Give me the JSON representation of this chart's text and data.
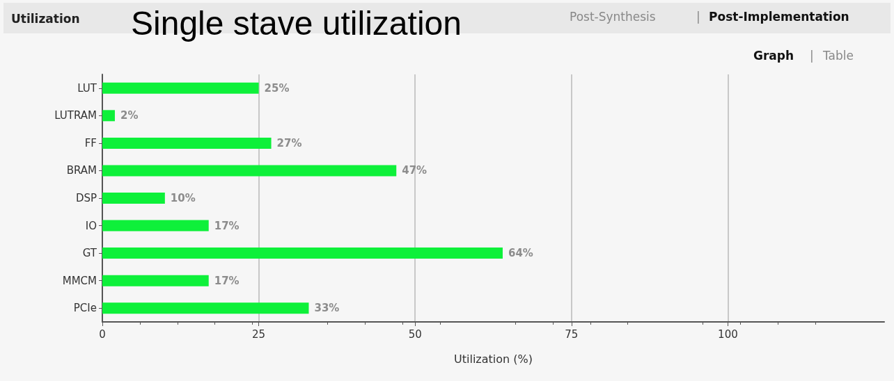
{
  "chart_data": {
    "type": "bar",
    "orientation": "horizontal",
    "title": "Single stave utilization",
    "xlabel": "Utilization (%)",
    "annotations": [
      "Utilization",
      "Post-Synthesis",
      "|",
      "Post-Implementation",
      "Graph",
      "|",
      "Table"
    ],
    "categories": [
      "LUT",
      "LUTRAM",
      "FF",
      "BRAM",
      "DSP",
      "IO",
      "GT",
      "MMCM",
      "PCIe"
    ],
    "values": [
      25,
      2,
      27,
      47,
      10,
      17,
      64,
      17,
      33
    ],
    "value_labels": [
      "25%",
      "2%",
      "27%",
      "47%",
      "10%",
      "17%",
      "64%",
      "17%",
      "33%"
    ],
    "color": "#0ef03a",
    "xlim": [
      0,
      125
    ],
    "xticks": [
      0,
      25,
      50,
      75,
      100
    ],
    "grid": "x"
  }
}
